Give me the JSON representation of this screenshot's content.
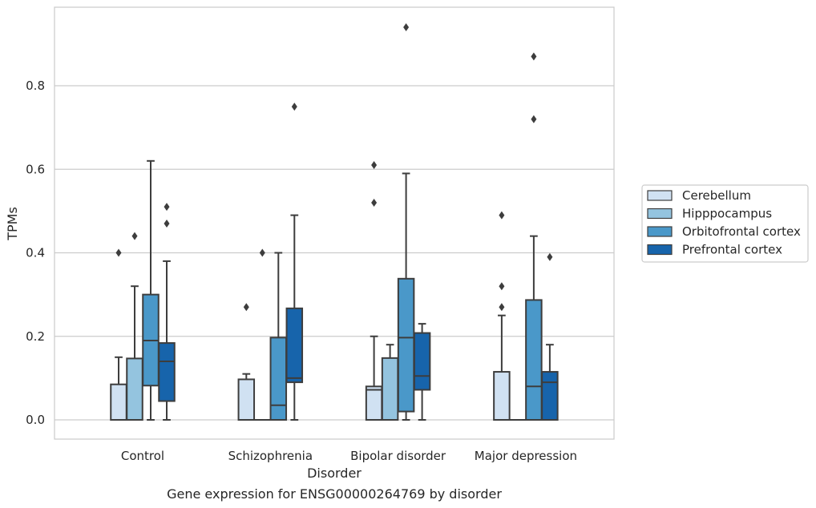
{
  "chart_data": {
    "type": "box",
    "xlabel": "Disorder",
    "ylabel": "TPMs",
    "caption": "Gene expression for ENSG00000264769 by disorder",
    "ylim": [
      -0.045,
      0.99
    ],
    "yticks": [
      "0.0",
      "0.2",
      "0.4",
      "0.6",
      "0.8"
    ],
    "ytick_values": [
      0.0,
      0.2,
      0.4,
      0.6,
      0.8
    ],
    "grid": "horizontal",
    "legend_placement": "right",
    "categories": [
      "Control",
      "Schizophrenia",
      "Bipolar disorder",
      "Major depression"
    ],
    "series": [
      {
        "name": "Cerebellum",
        "color": "#d0e1f2",
        "boxes": [
          {
            "q1": 0.0,
            "median": 0.0,
            "q3": 0.085,
            "whislo": 0.0,
            "whishi": 0.15,
            "fliers": [
              0.4
            ]
          },
          {
            "q1": 0.0,
            "median": 0.0,
            "q3": 0.097,
            "whislo": 0.0,
            "whishi": 0.11,
            "fliers": [
              0.27
            ]
          },
          {
            "q1": 0.0,
            "median": 0.072,
            "q3": 0.08,
            "whislo": 0.0,
            "whishi": 0.2,
            "fliers": [
              0.52,
              0.61
            ]
          },
          {
            "q1": 0.0,
            "median": 0.0,
            "q3": 0.115,
            "whislo": 0.0,
            "whishi": 0.25,
            "fliers": [
              0.27,
              0.32,
              0.49
            ]
          }
        ]
      },
      {
        "name": "Hipppocampus",
        "color": "#94c4df",
        "boxes": [
          {
            "q1": 0.0,
            "median": 0.0,
            "q3": 0.147,
            "whislo": 0.0,
            "whishi": 0.32,
            "fliers": [
              0.44
            ]
          },
          {
            "q1": 0.0,
            "median": 0.0,
            "q3": 0.0,
            "whislo": 0.0,
            "whishi": 0.0,
            "fliers": [
              0.4
            ]
          },
          {
            "q1": 0.0,
            "median": 0.0,
            "q3": 0.148,
            "whislo": 0.0,
            "whishi": 0.18,
            "fliers": []
          },
          {
            "q1": 0.0,
            "median": 0.0,
            "q3": 0.0,
            "whislo": 0.0,
            "whishi": 0.0,
            "fliers": []
          }
        ]
      },
      {
        "name": "Orbitofrontal cortex",
        "color": "#4a98c9",
        "boxes": [
          {
            "q1": 0.082,
            "median": 0.19,
            "q3": 0.3,
            "whislo": 0.0,
            "whishi": 0.62,
            "fliers": []
          },
          {
            "q1": 0.0,
            "median": 0.035,
            "q3": 0.197,
            "whislo": 0.0,
            "whishi": 0.4,
            "fliers": []
          },
          {
            "q1": 0.02,
            "median": 0.197,
            "q3": 0.338,
            "whislo": 0.0,
            "whishi": 0.59,
            "fliers": [
              0.94
            ]
          },
          {
            "q1": 0.0,
            "median": 0.08,
            "q3": 0.287,
            "whislo": 0.0,
            "whishi": 0.44,
            "fliers": [
              0.72,
              0.87
            ]
          }
        ]
      },
      {
        "name": "Prefrontal cortex",
        "color": "#1764ab",
        "boxes": [
          {
            "q1": 0.045,
            "median": 0.14,
            "q3": 0.184,
            "whislo": 0.0,
            "whishi": 0.38,
            "fliers": [
              0.47,
              0.51
            ]
          },
          {
            "q1": 0.09,
            "median": 0.1,
            "q3": 0.267,
            "whislo": 0.0,
            "whishi": 0.49,
            "fliers": [
              0.75
            ]
          },
          {
            "q1": 0.072,
            "median": 0.105,
            "q3": 0.208,
            "whislo": 0.0,
            "whishi": 0.23,
            "fliers": []
          },
          {
            "q1": 0.0,
            "median": 0.09,
            "q3": 0.115,
            "whislo": 0.0,
            "whishi": 0.18,
            "fliers": [
              0.39
            ]
          }
        ]
      }
    ]
  }
}
